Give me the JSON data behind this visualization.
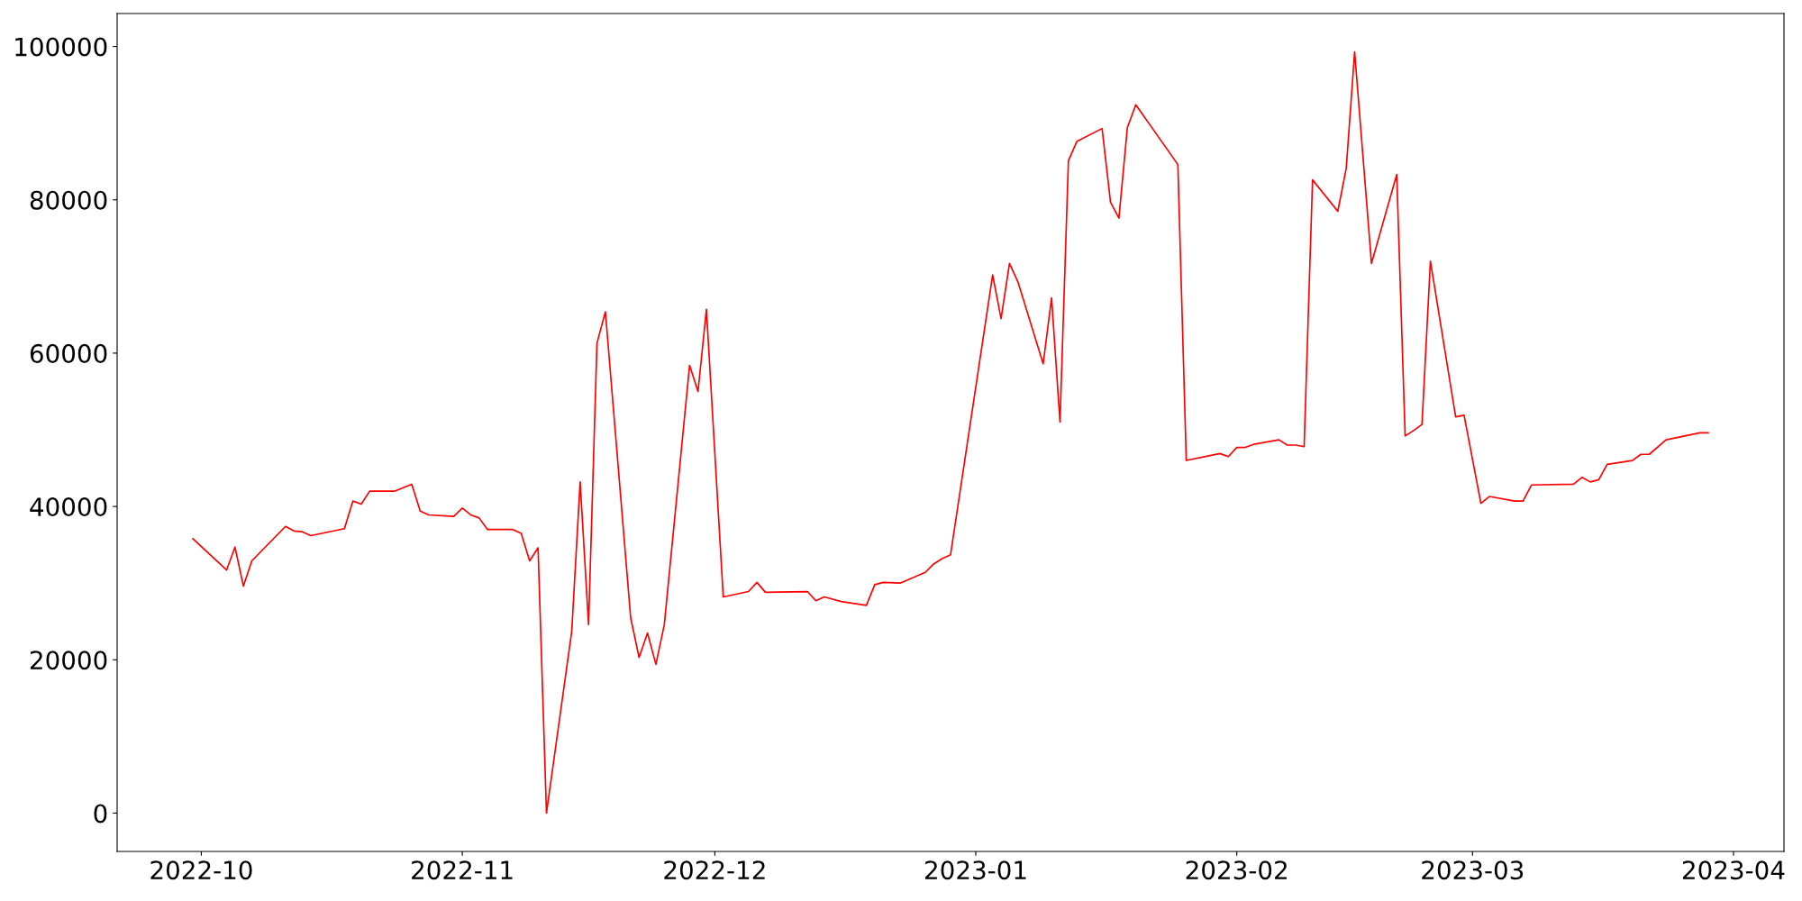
{
  "chart_data": {
    "type": "line",
    "grid": false,
    "legend": false,
    "marker": "none",
    "line_style": "solid",
    "xlim": [
      "2022-09-21",
      "2023-04-07"
    ],
    "xticks": [
      {
        "value": "2022-10-01",
        "label": "2022-10"
      },
      {
        "value": "2022-11-01",
        "label": "2022-11"
      },
      {
        "value": "2022-12-01",
        "label": "2022-12"
      },
      {
        "value": "2023-01-01",
        "label": "2023-01"
      },
      {
        "value": "2023-02-01",
        "label": "2023-02"
      },
      {
        "value": "2023-03-01",
        "label": "2023-03"
      },
      {
        "value": "2023-04-01",
        "label": "2023-04"
      }
    ],
    "ylim": [
      -5000,
      104300
    ],
    "yticks": [
      0,
      20000,
      40000,
      60000,
      80000,
      100000
    ],
    "series": [
      {
        "color": "#ff0000",
        "x": [
          "2022-09-30",
          "2022-10-04",
          "2022-10-05",
          "2022-10-06",
          "2022-10-07",
          "2022-10-11",
          "2022-10-12",
          "2022-10-13",
          "2022-10-14",
          "2022-10-18",
          "2022-10-19",
          "2022-10-20",
          "2022-10-21",
          "2022-10-24",
          "2022-10-26",
          "2022-10-27",
          "2022-10-28",
          "2022-10-31",
          "2022-11-01",
          "2022-11-02",
          "2022-11-03",
          "2022-11-04",
          "2022-11-07",
          "2022-11-08",
          "2022-11-09",
          "2022-11-10",
          "2022-11-11",
          "2022-11-14",
          "2022-11-15",
          "2022-11-16",
          "2022-11-17",
          "2022-11-18",
          "2022-11-21",
          "2022-11-22",
          "2022-11-23",
          "2022-11-24",
          "2022-11-25",
          "2022-11-28",
          "2022-11-29",
          "2022-11-30",
          "2022-12-02",
          "2022-12-05",
          "2022-12-06",
          "2022-12-07",
          "2022-12-12",
          "2022-12-13",
          "2022-12-14",
          "2022-12-16",
          "2022-12-19",
          "2022-12-20",
          "2022-12-21",
          "2022-12-23",
          "2022-12-26",
          "2022-12-27",
          "2022-12-28",
          "2022-12-29",
          "2023-01-03",
          "2023-01-04",
          "2023-01-05",
          "2023-01-06",
          "2023-01-09",
          "2023-01-10",
          "2023-01-11",
          "2023-01-12",
          "2023-01-13",
          "2023-01-16",
          "2023-01-17",
          "2023-01-18",
          "2023-01-19",
          "2023-01-20",
          "2023-01-25",
          "2023-01-26",
          "2023-01-30",
          "2023-01-31",
          "2023-02-01",
          "2023-02-02",
          "2023-02-03",
          "2023-02-06",
          "2023-02-07",
          "2023-02-08",
          "2023-02-09",
          "2023-02-10",
          "2023-02-13",
          "2023-02-14",
          "2023-02-15",
          "2023-02-17",
          "2023-02-20",
          "2023-02-21",
          "2023-02-22",
          "2023-02-23",
          "2023-02-24",
          "2023-02-27",
          "2023-02-28",
          "2023-03-02",
          "2023-03-03",
          "2023-03-06",
          "2023-03-07",
          "2023-03-08",
          "2023-03-13",
          "2023-03-14",
          "2023-03-15",
          "2023-03-16",
          "2023-03-17",
          "2023-03-20",
          "2023-03-21",
          "2023-03-22",
          "2023-03-24",
          "2023-03-28",
          "2023-03-29"
        ],
        "values": [
          35800,
          31700,
          34700,
          29600,
          32900,
          37400,
          36800,
          36700,
          36200,
          37100,
          40700,
          40300,
          42000,
          42000,
          42900,
          39400,
          38900,
          38700,
          39800,
          38900,
          38500,
          37000,
          37000,
          36500,
          32900,
          34600,
          0,
          23700,
          43200,
          24600,
          61300,
          65400,
          25500,
          20300,
          23500,
          19400,
          24600,
          58400,
          55000,
          65700,
          28200,
          28900,
          30100,
          28800,
          28900,
          27700,
          28200,
          27600,
          27100,
          29800,
          30100,
          30000,
          31400,
          32500,
          33200,
          33700,
          70200,
          64500,
          71700,
          69300,
          58600,
          67200,
          51000,
          85100,
          87600,
          89300,
          79700,
          77600,
          89400,
          92400,
          84600,
          46000,
          46900,
          46500,
          47700,
          47700,
          48100,
          48700,
          48000,
          48000,
          47800,
          82600,
          78500,
          84100,
          99300,
          71700,
          83300,
          49200,
          49900,
          50700,
          72000,
          51700,
          51900,
          40400,
          41300,
          40700,
          40700,
          42800,
          42900,
          43800,
          43200,
          43500,
          45500,
          46000,
          46800,
          46800,
          48700,
          49600,
          49600
        ]
      }
    ]
  }
}
